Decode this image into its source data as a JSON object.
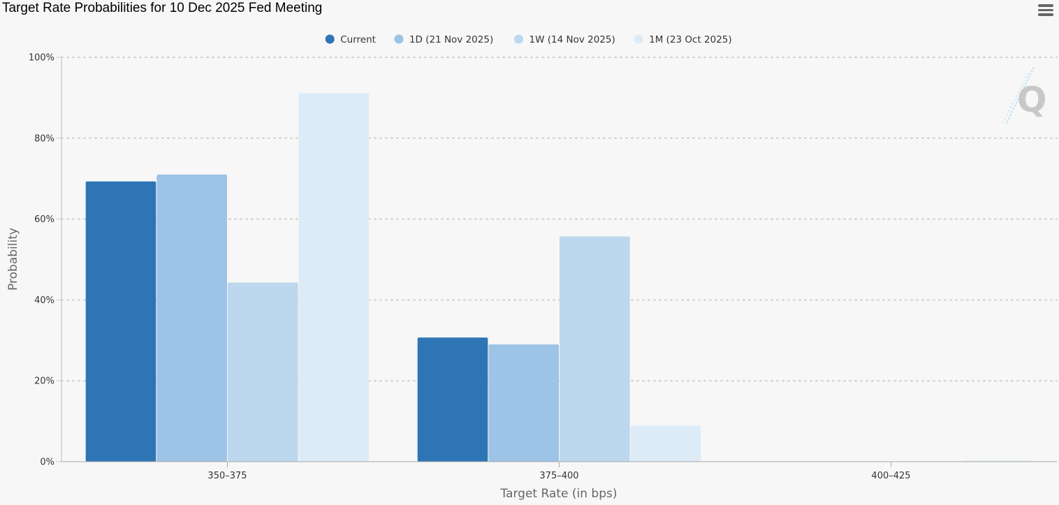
{
  "page": {
    "title": "Target Rate Probabilities for 10 Dec 2025 Fed Meeting",
    "menu_icon": "hamburger-menu-icon",
    "watermark_icon": "q-logo-icon"
  },
  "chart_data": {
    "type": "bar",
    "title": "Target Rate Probabilities for 10 Dec 2025 Fed Meeting",
    "xlabel": "Target Rate (in bps)",
    "ylabel": "Probability",
    "categories": [
      "350–375",
      "375–400",
      "400–425"
    ],
    "ylim": [
      0,
      100
    ],
    "yticks": [
      "0%",
      "20%",
      "40%",
      "60%",
      "80%",
      "100%"
    ],
    "ytick_values": [
      0,
      20,
      40,
      60,
      80,
      100
    ],
    "grid": "horizontal-dotted",
    "legend_position": "top-center",
    "series": [
      {
        "name": "Current",
        "color": "#2e75b6",
        "values": [
          69.3,
          30.7,
          0
        ]
      },
      {
        "name": "1D (21 Nov 2025)",
        "color": "#9dc3e6",
        "values": [
          71.0,
          29.0,
          0
        ]
      },
      {
        "name": "1W (14 Nov 2025)",
        "color": "#bdd7ee",
        "values": [
          44.3,
          55.7,
          0
        ]
      },
      {
        "name": "1M (23 Oct 2025)",
        "color": "#ddebf7",
        "values": [
          91.1,
          8.9,
          0.3
        ]
      }
    ]
  }
}
